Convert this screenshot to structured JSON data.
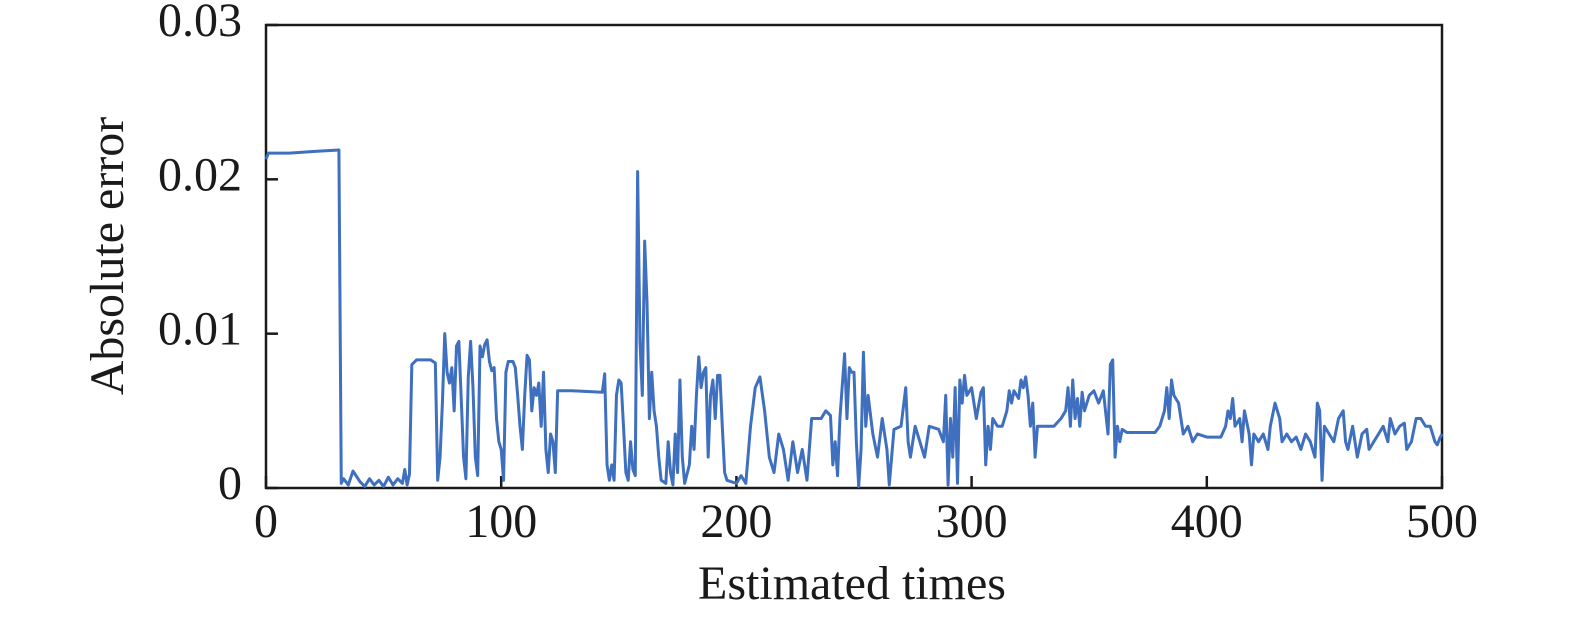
{
  "chart_data": {
    "type": "line",
    "xlabel": "Estimated times",
    "ylabel": "Absolute error",
    "xlim": [
      0,
      500
    ],
    "ylim": [
      0,
      0.03
    ],
    "xticks": [
      0,
      100,
      200,
      300,
      400,
      500
    ],
    "yticks": [
      0,
      0.01,
      0.02,
      0.03
    ],
    "grid": false,
    "series": [
      {
        "name": "Absolute error",
        "color": "#3f6fbf",
        "x": [
          0,
          1,
          10,
          20,
          31,
          32,
          33,
          35,
          37,
          40,
          42,
          44,
          46,
          48,
          50,
          52,
          54,
          56,
          58,
          59,
          60,
          61,
          62,
          64,
          70,
          72,
          73,
          74,
          75,
          76,
          77,
          78,
          79,
          80,
          81,
          82,
          83,
          84,
          85,
          86,
          87,
          88,
          89,
          90,
          91,
          92,
          93,
          94,
          95,
          96,
          97,
          98,
          99,
          100,
          101,
          102,
          103,
          105,
          106,
          107,
          108,
          109,
          110,
          111,
          112,
          113,
          114,
          115,
          116,
          117,
          118,
          119,
          120,
          121,
          122,
          123,
          124,
          130,
          143,
          144,
          145,
          146,
          147,
          148,
          149,
          150,
          151,
          152,
          153,
          154,
          155,
          156,
          157,
          158,
          159,
          160,
          161,
          162,
          163,
          164,
          165,
          166,
          167,
          168,
          170,
          171,
          172,
          173,
          174,
          175,
          176,
          177,
          178,
          180,
          181,
          182,
          183,
          184,
          185,
          186,
          187,
          188,
          189,
          190,
          191,
          192,
          193,
          194,
          195,
          196,
          200,
          202,
          204,
          206,
          208,
          210,
          212,
          214,
          216,
          218,
          220,
          222,
          224,
          226,
          228,
          230,
          232,
          236,
          238,
          240,
          241,
          242,
          243,
          244,
          246,
          247,
          248,
          249,
          250,
          251,
          252,
          253,
          254,
          255,
          256,
          258,
          260,
          262,
          264,
          265,
          267,
          270,
          272,
          273,
          274,
          276,
          278,
          280,
          282,
          286,
          288,
          289,
          290,
          291,
          292,
          293,
          294,
          295,
          296,
          297,
          298,
          300,
          302,
          304,
          305,
          306,
          307,
          308,
          309,
          311,
          313,
          315,
          316,
          317,
          318,
          320,
          321,
          322,
          323,
          324,
          325,
          326,
          327,
          328,
          330,
          335,
          338,
          340,
          341,
          342,
          343,
          344,
          345,
          346,
          347,
          348,
          350,
          352,
          354,
          356,
          358,
          359,
          360,
          361,
          362,
          363,
          364,
          366,
          370,
          378,
          380,
          382,
          383,
          384,
          385,
          386,
          388,
          390,
          392,
          394,
          396,
          400,
          406,
          408,
          409,
          410,
          411,
          412,
          414,
          415,
          416,
          418,
          419,
          420,
          422,
          424,
          426,
          427,
          429,
          431,
          432,
          434,
          436,
          438,
          440,
          442,
          444,
          446,
          447,
          448,
          449,
          450,
          452,
          454,
          456,
          458,
          459,
          460,
          462,
          464,
          466,
          468,
          469,
          471,
          473,
          475,
          477,
          478,
          480,
          482,
          484,
          485,
          487,
          489,
          491,
          493,
          495,
          497,
          498,
          499,
          500
        ],
        "values": [
          0.0213,
          0.0217,
          0.0217,
          0.0218,
          0.0219,
          0.0003,
          0.0006,
          0.0002,
          0.0011,
          0.0004,
          0.0001,
          0.0006,
          0.0002,
          0.0005,
          0.0001,
          0.0007,
          0.0002,
          0.0006,
          0.0003,
          0.0012,
          0.0002,
          0.0009,
          0.008,
          0.0083,
          0.0083,
          0.0081,
          0.0005,
          0.002,
          0.0055,
          0.01,
          0.0075,
          0.0068,
          0.0078,
          0.005,
          0.0092,
          0.0095,
          0.0058,
          0.002,
          0.0006,
          0.0072,
          0.0095,
          0.0065,
          0.002,
          0.0008,
          0.0092,
          0.0085,
          0.0093,
          0.0096,
          0.0082,
          0.0076,
          0.0078,
          0.0045,
          0.003,
          0.0025,
          0.0005,
          0.0075,
          0.0082,
          0.0082,
          0.0078,
          0.006,
          0.004,
          0.0025,
          0.006,
          0.0086,
          0.0083,
          0.005,
          0.0065,
          0.006,
          0.0068,
          0.004,
          0.0075,
          0.0025,
          0.001,
          0.0035,
          0.003,
          0.001,
          0.0063,
          0.0063,
          0.0062,
          0.0074,
          0.0015,
          0.0005,
          0.0015,
          0.0005,
          0.006,
          0.007,
          0.0068,
          0.004,
          0.001,
          0.0005,
          0.003,
          0.0012,
          0.0008,
          0.0205,
          0.0095,
          0.006,
          0.016,
          0.012,
          0.0045,
          0.0075,
          0.005,
          0.004,
          0.002,
          0.0005,
          0.0003,
          0.003,
          0.001,
          0.0002,
          0.0035,
          0.001,
          0.007,
          0.002,
          0.0003,
          0.0015,
          0.004,
          0.0025,
          0.006,
          0.0085,
          0.0065,
          0.0075,
          0.0078,
          0.002,
          0.006,
          0.007,
          0.0045,
          0.0073,
          0.0073,
          0.004,
          0.001,
          0.0005,
          0.0003,
          0.0008,
          0.0003,
          0.004,
          0.0065,
          0.0072,
          0.005,
          0.002,
          0.001,
          0.0035,
          0.0025,
          0.0005,
          0.003,
          0.001,
          0.0025,
          0.0005,
          0.0045,
          0.0045,
          0.005,
          0.0047,
          0.0015,
          0.003,
          0.0008,
          0.0045,
          0.0087,
          0.0045,
          0.0078,
          0.0075,
          0.0075,
          0.003,
          0.0001,
          0.0025,
          0.0088,
          0.004,
          0.006,
          0.0035,
          0.002,
          0.0045,
          0.0025,
          0.0002,
          0.0038,
          0.004,
          0.0065,
          0.003,
          0.002,
          0.004,
          0.003,
          0.002,
          0.004,
          0.0038,
          0.003,
          0.006,
          0.0002,
          0.0045,
          0.002,
          0.0065,
          0.0003,
          0.007,
          0.0055,
          0.0073,
          0.006,
          0.0065,
          0.0045,
          0.0062,
          0.0065,
          0.0015,
          0.004,
          0.0025,
          0.0045,
          0.004,
          0.004,
          0.005,
          0.0063,
          0.0055,
          0.0063,
          0.0058,
          0.007,
          0.0065,
          0.0072,
          0.006,
          0.004,
          0.0055,
          0.002,
          0.004,
          0.004,
          0.004,
          0.0045,
          0.005,
          0.0065,
          0.004,
          0.007,
          0.0045,
          0.0058,
          0.004,
          0.0062,
          0.005,
          0.006,
          0.0063,
          0.0055,
          0.0063,
          0.0035,
          0.008,
          0.0083,
          0.002,
          0.004,
          0.003,
          0.0038,
          0.0036,
          0.0036,
          0.0036,
          0.004,
          0.005,
          0.0065,
          0.0045,
          0.007,
          0.006,
          0.0055,
          0.0035,
          0.004,
          0.003,
          0.0035,
          0.0033,
          0.0033,
          0.004,
          0.005,
          0.0045,
          0.0058,
          0.004,
          0.0045,
          0.003,
          0.005,
          0.0035,
          0.0015,
          0.0035,
          0.003,
          0.0035,
          0.0025,
          0.004,
          0.0055,
          0.0045,
          0.003,
          0.0035,
          0.003,
          0.0033,
          0.0025,
          0.0035,
          0.003,
          0.002,
          0.0055,
          0.005,
          0.0005,
          0.004,
          0.0035,
          0.003,
          0.0045,
          0.005,
          0.003,
          0.0025,
          0.004,
          0.002,
          0.0035,
          0.0038,
          0.0025,
          0.003,
          0.0035,
          0.004,
          0.003,
          0.0045,
          0.0035,
          0.004,
          0.0042,
          0.0025,
          0.003,
          0.0045,
          0.0045,
          0.004,
          0.004,
          0.003,
          0.0028,
          0.0032,
          0.0035
        ]
      }
    ]
  }
}
